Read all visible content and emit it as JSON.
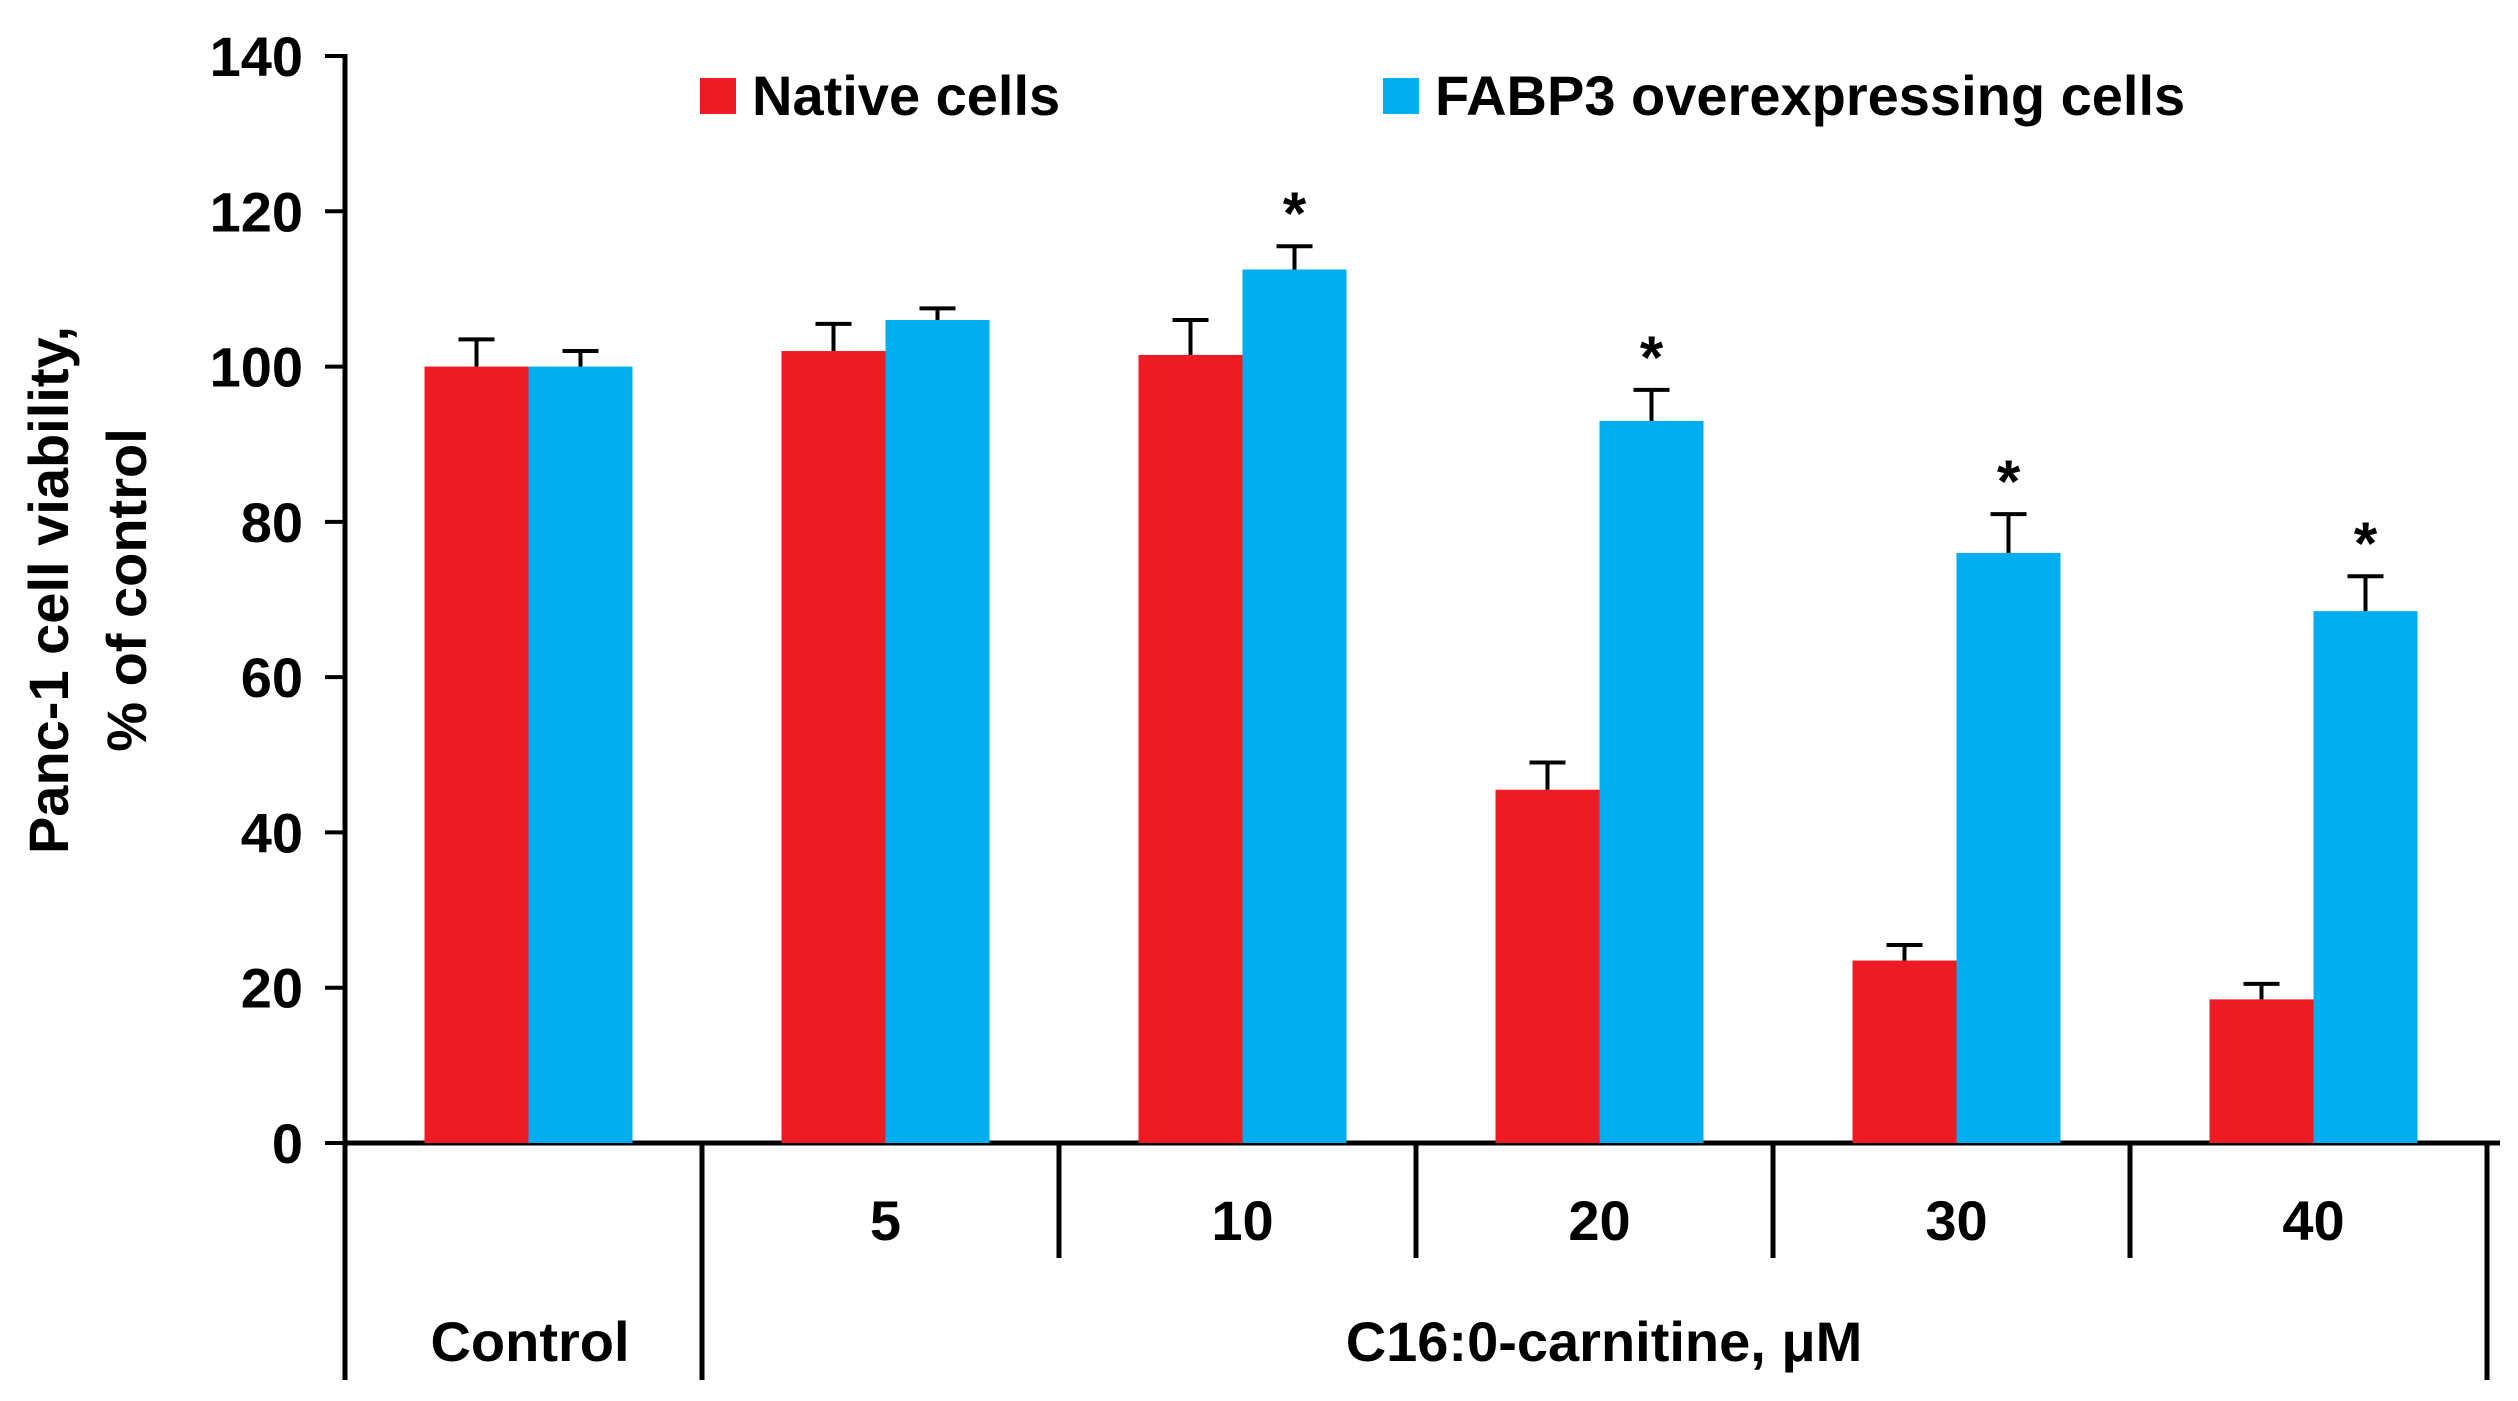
{
  "chart_data": {
    "type": "bar",
    "title": "",
    "ylabel_line1": "Panc-1 cell viability,",
    "ylabel_line2": "% of control",
    "xlabel": "C16:0-carnitine, μM",
    "control_label": "Control",
    "categories": [
      "Control",
      "5",
      "10",
      "20",
      "30",
      "40"
    ],
    "tick_labels": [
      "",
      "5",
      "10",
      "20",
      "30",
      "40"
    ],
    "ylim": [
      0,
      140
    ],
    "yticks": [
      0,
      20,
      40,
      60,
      80,
      100,
      120,
      140
    ],
    "legend_position": "top",
    "significance_marker": "*",
    "series": [
      {
        "name": "Native cells",
        "color": "#ed1c24",
        "values": [
          100,
          102,
          101.5,
          45.5,
          23.5,
          18.5
        ],
        "errors": [
          3.5,
          3.5,
          4.5,
          3.5,
          2.0,
          2.0
        ],
        "significant": [
          false,
          false,
          false,
          false,
          false,
          false
        ]
      },
      {
        "name": "FABP3 overexpressing cells",
        "color": "#00aeef",
        "values": [
          100,
          106,
          112.5,
          93,
          76,
          68.5
        ],
        "errors": [
          2.0,
          1.5,
          3.0,
          4.0,
          5.0,
          4.5
        ],
        "significant": [
          false,
          false,
          true,
          true,
          true,
          true
        ]
      }
    ]
  }
}
